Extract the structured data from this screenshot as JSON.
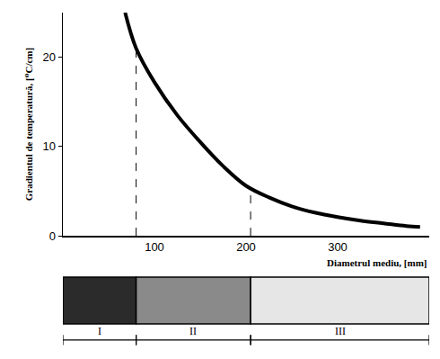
{
  "chart_data": {
    "type": "line",
    "x": [
      68,
      80,
      100,
      125,
      150,
      175,
      200,
      225,
      250,
      275,
      300,
      325,
      350,
      375,
      390
    ],
    "values": [
      25,
      21,
      17.2,
      13.5,
      10.5,
      7.8,
      5.6,
      4.3,
      3.3,
      2.6,
      2.1,
      1.7,
      1.4,
      1.1,
      1.0
    ],
    "color": "#000000",
    "line_style": "solid",
    "xlim": [
      0,
      400
    ],
    "ylim": [
      0,
      25
    ],
    "xticks": [
      100,
      200,
      300
    ],
    "yticks": [
      0,
      10,
      20
    ],
    "grid": false,
    "x_label": "Diametrul mediu, [mm]",
    "y_label": "Gradientul de temperatură, [⁰C/cm]",
    "reference_lines": [
      {
        "x": 80,
        "y": 21
      },
      {
        "x": 205,
        "y": 5.3
      }
    ],
    "zones": [
      {
        "label": "I",
        "from": 0,
        "to": 80
      },
      {
        "label": "II",
        "from": 80,
        "to": 205
      },
      {
        "label": "III",
        "from": 205,
        "to": 400
      }
    ]
  }
}
